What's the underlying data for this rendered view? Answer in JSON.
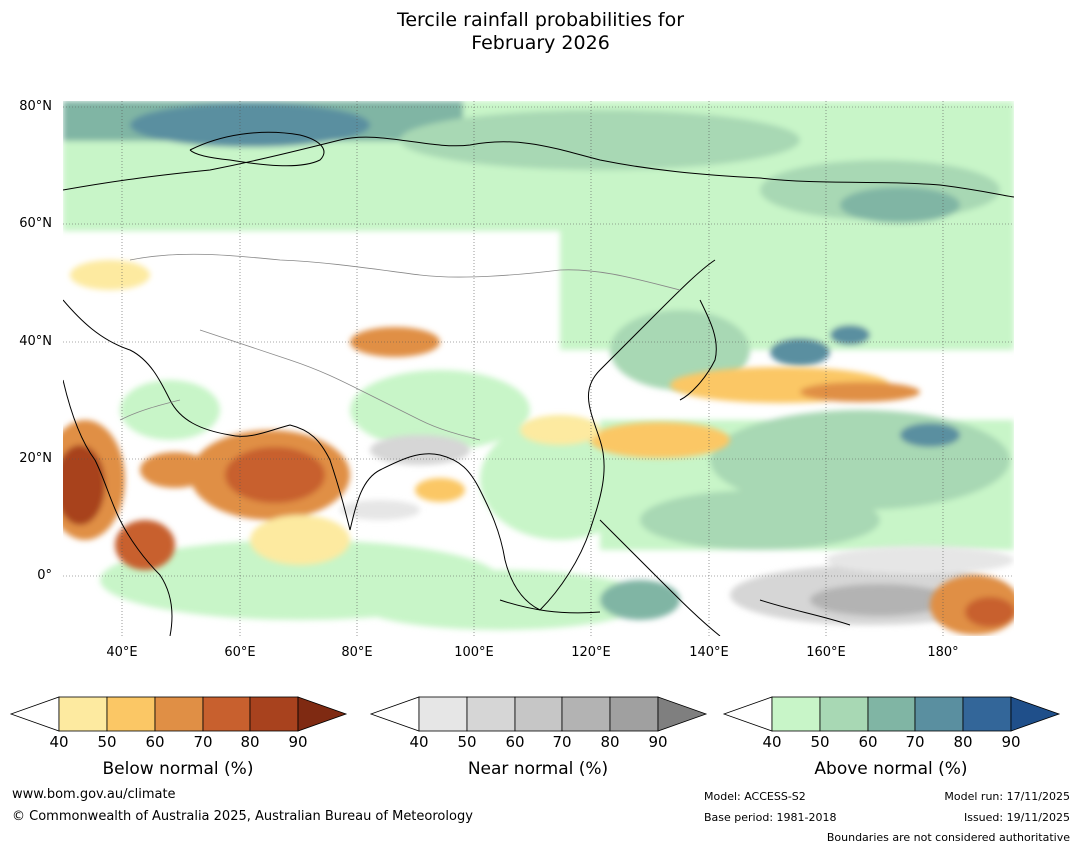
{
  "title": {
    "line1": "Tercile rainfall probabilities for",
    "line2": "February 2026"
  },
  "map": {
    "lat_labels": [
      "80°N",
      "60°N",
      "40°N",
      "20°N",
      "0°"
    ],
    "lon_labels": [
      "40°E",
      "60°E",
      "80°E",
      "100°E",
      "120°E",
      "140°E",
      "160°E",
      "180°"
    ],
    "extent": {
      "lon": [
        30,
        192
      ],
      "lat": [
        -10,
        81
      ]
    }
  },
  "colorbars": [
    {
      "name": "below",
      "title": "Below normal (%)",
      "ticks": [
        "40",
        "50",
        "60",
        "70",
        "80",
        "90"
      ],
      "colors": [
        "#ffffff",
        "#fdeaa0",
        "#fbc765",
        "#e08f45",
        "#c8602e",
        "#a8421e",
        "#7f2a12"
      ]
    },
    {
      "name": "near",
      "title": "Near normal (%)",
      "ticks": [
        "40",
        "50",
        "60",
        "70",
        "80",
        "90"
      ],
      "colors": [
        "#ffffff",
        "#e6e6e6",
        "#d6d6d6",
        "#c6c6c6",
        "#b3b3b3",
        "#a0a0a0",
        "#7f7f7f"
      ]
    },
    {
      "name": "above",
      "title": "Above normal (%)",
      "ticks": [
        "40",
        "50",
        "60",
        "70",
        "80",
        "90"
      ],
      "colors": [
        "#ffffff",
        "#c8f5c8",
        "#a8d8b4",
        "#80b5a4",
        "#5a8fa0",
        "#336699",
        "#1f4f8a"
      ]
    }
  ],
  "footer": {
    "url": "www.bom.gov.au/climate",
    "copyright": "© Commonwealth of Australia 2025, Australian Bureau of Meteorology",
    "model": "Model: ACCESS-S2",
    "base_period": "Base period: 1981-2018",
    "model_run": "Model run: 17/11/2025",
    "issued": "Issued: 19/11/2025",
    "disclaimer": "Boundaries are not considered authoritative"
  }
}
